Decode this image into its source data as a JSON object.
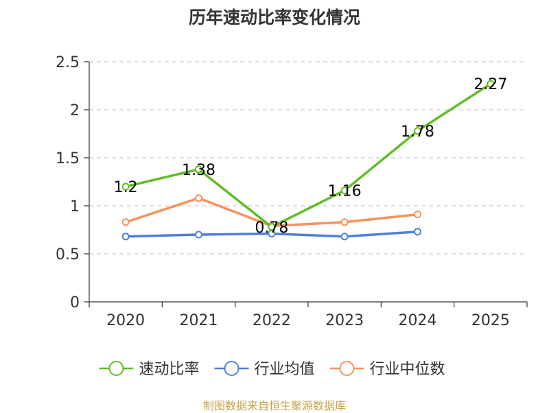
{
  "chart_data": {
    "type": "line",
    "title": "历年速动比率变化情况",
    "categories": [
      "2020",
      "2021",
      "2022",
      "2023",
      "2024",
      "2025"
    ],
    "ylim": [
      0,
      2.5
    ],
    "yticks": [
      0,
      0.5,
      1,
      1.5,
      2,
      2.5
    ],
    "ytick_labels": [
      "0",
      "0.5",
      "1",
      "1.5",
      "2",
      "2.5"
    ],
    "grid": true,
    "legend_position": "bottom",
    "series": [
      {
        "name": "速动比率",
        "color": "#5fbd22",
        "values": [
          1.2,
          1.38,
          0.78,
          1.16,
          1.78,
          2.27
        ],
        "labels": [
          "1.2",
          "1.38",
          "0.78",
          "1.16",
          "1.78",
          "2.27"
        ]
      },
      {
        "name": "行业均值",
        "color": "#4e7fd9",
        "values": [
          0.68,
          0.7,
          0.71,
          0.68,
          0.73,
          null
        ]
      },
      {
        "name": "行业中位数",
        "color": "#f5925e",
        "values": [
          0.83,
          1.08,
          0.79,
          0.83,
          0.91,
          null
        ]
      }
    ]
  },
  "footer": {
    "source": "制图数据来自恒生聚源数据库"
  }
}
